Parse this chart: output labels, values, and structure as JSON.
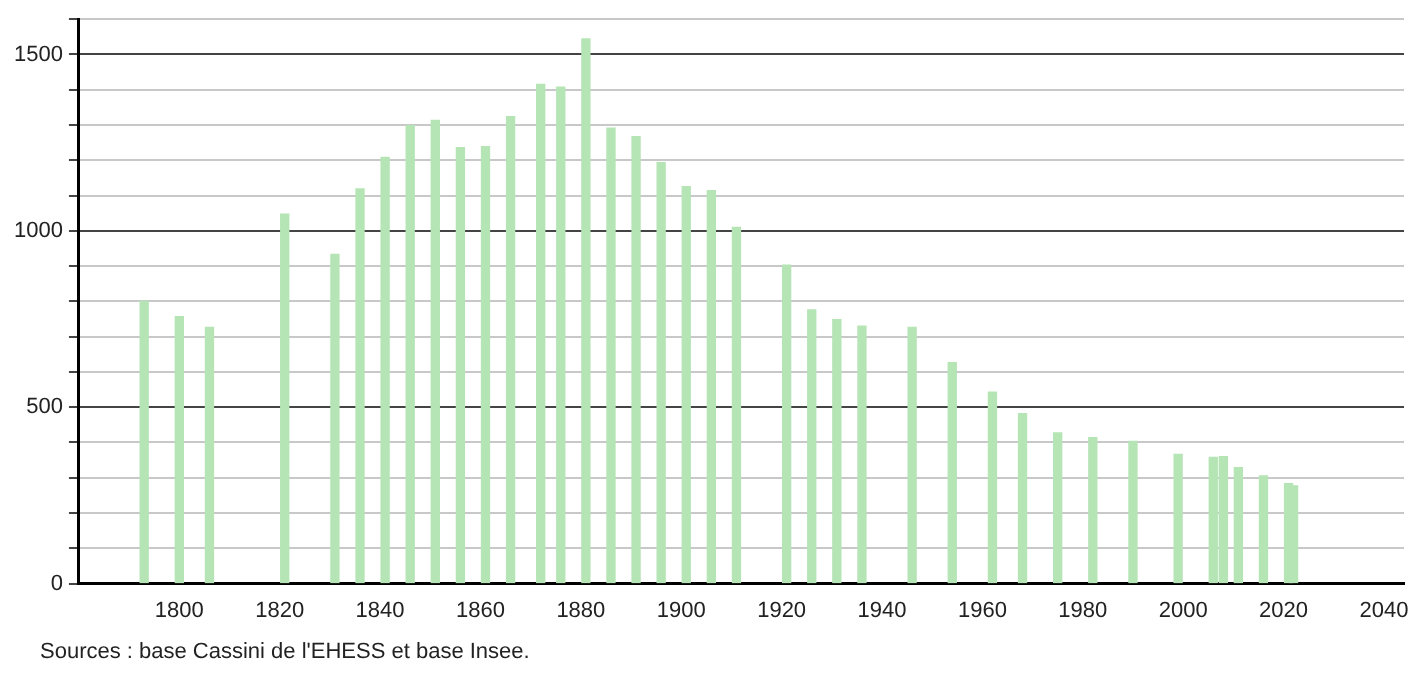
{
  "chart_data": {
    "type": "bar",
    "x": [
      1793,
      1800,
      1806,
      1821,
      1831,
      1836,
      1841,
      1846,
      1851,
      1856,
      1861,
      1866,
      1872,
      1876,
      1881,
      1886,
      1891,
      1896,
      1901,
      1906,
      1911,
      1921,
      1926,
      1931,
      1936,
      1946,
      1954,
      1962,
      1968,
      1975,
      1982,
      1990,
      1999,
      2006,
      2008,
      2011,
      2016,
      2021,
      2022
    ],
    "values": [
      800,
      757,
      726,
      1047,
      933,
      1119,
      1208,
      1298,
      1313,
      1236,
      1239,
      1324,
      1415,
      1407,
      1544,
      1291,
      1267,
      1193,
      1125,
      1114,
      1010,
      903,
      776,
      748,
      730,
      726,
      626,
      543,
      482,
      427,
      414,
      403,
      366,
      358,
      360,
      329,
      305,
      283,
      277
    ],
    "color": "#b5e4b5",
    "xlim": [
      1780,
      2044
    ],
    "xticks": [
      1800,
      1820,
      1840,
      1860,
      1880,
      1900,
      1920,
      1940,
      1960,
      1980,
      2000,
      2020,
      2040
    ],
    "ylim": [
      0,
      1600
    ],
    "yticks": [
      0,
      {
        "value": 100,
        "label": null
      },
      {
        "value": 200,
        "label": null
      },
      {
        "value": 300,
        "label": null
      },
      {
        "value": 400,
        "label": null
      },
      500,
      {
        "value": 600,
        "label": null
      },
      {
        "value": 700,
        "label": null
      },
      {
        "value": 800,
        "label": null
      },
      {
        "value": 900,
        "label": null
      },
      1000,
      {
        "value": 1100,
        "label": null
      },
      {
        "value": 1200,
        "label": null
      },
      {
        "value": 1300,
        "label": null
      },
      {
        "value": 1400,
        "label": null
      },
      1500,
      {
        "value": 1600,
        "label": null
      }
    ],
    "grid": "y",
    "legend": false,
    "annotations": [
      "Sources : base Cassini de l'EHESS et base Insee."
    ]
  }
}
